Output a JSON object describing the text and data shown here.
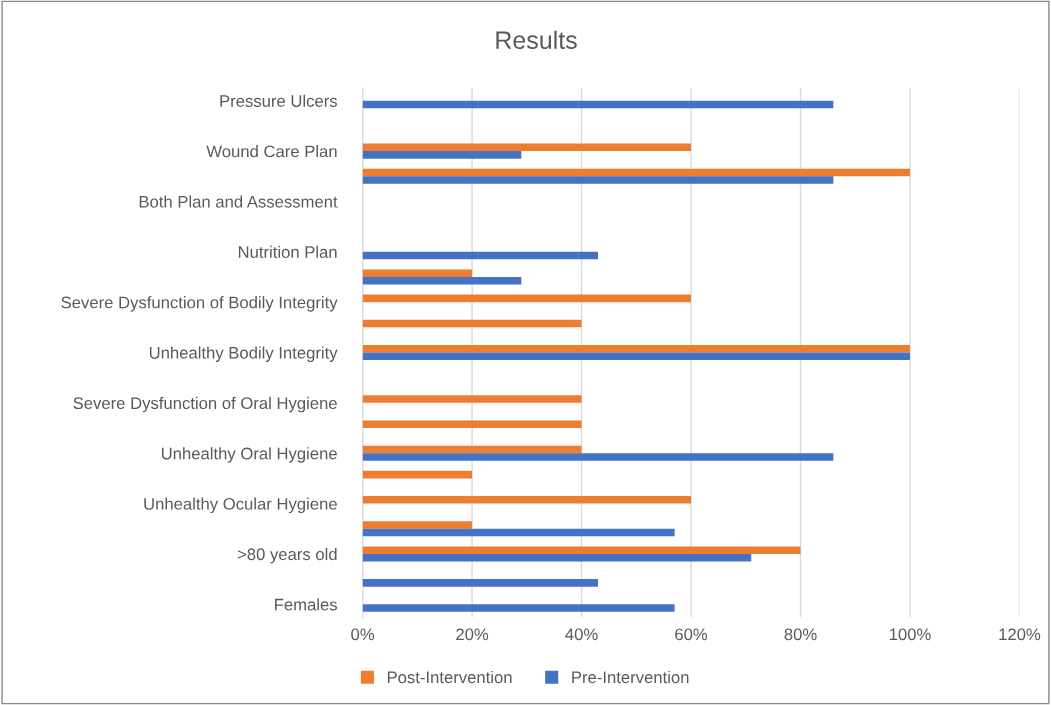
{
  "chart_data": {
    "type": "bar",
    "orientation": "horizontal",
    "title": "Results",
    "categories": [
      "Pressure Ulcers",
      null,
      "Wound Care Plan",
      null,
      "Both Plan and Assessment",
      null,
      "Nutrition Plan",
      null,
      "Severe Dysfunction of Bodily Integrity",
      null,
      "Unhealthy Bodily Integrity",
      null,
      "Severe Dysfunction of Oral Hygiene",
      null,
      "Unhealthy Oral Hygiene",
      null,
      "Unhealthy Ocular Hygiene",
      null,
      ">80 years old",
      null,
      "Females"
    ],
    "series": [
      {
        "name": "Post-Intervention",
        "color": "#ed7d31",
        "values": [
          null,
          null,
          60,
          100,
          null,
          null,
          null,
          20,
          60,
          40,
          100,
          null,
          40,
          40,
          40,
          20,
          60,
          20,
          80,
          null,
          null
        ]
      },
      {
        "name": "Pre-Intervention",
        "color": "#4472c4",
        "values": [
          86,
          null,
          29,
          86,
          null,
          null,
          43,
          29,
          null,
          null,
          100,
          null,
          null,
          null,
          86,
          null,
          null,
          57,
          71,
          43,
          57
        ]
      }
    ],
    "xlim": [
      0,
      120
    ],
    "xticks": [
      {
        "value": 0,
        "label": "0%"
      },
      {
        "value": 20,
        "label": "20%"
      },
      {
        "value": 40,
        "label": "40%"
      },
      {
        "value": 60,
        "label": "60%"
      },
      {
        "value": 80,
        "label": "80%"
      },
      {
        "value": 100,
        "label": "100%"
      },
      {
        "value": 120,
        "label": "120%"
      }
    ],
    "grid": "x",
    "legend": "bottom"
  }
}
